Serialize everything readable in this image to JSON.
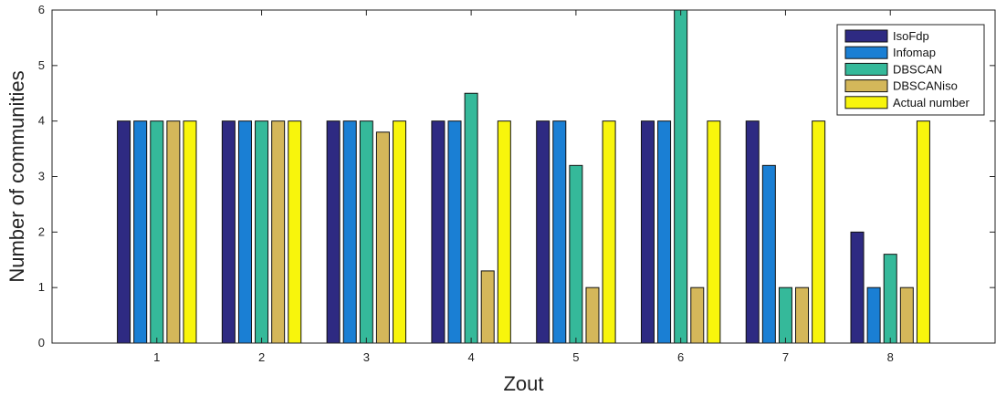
{
  "chart_data": {
    "type": "bar",
    "xlabel": "Zout",
    "ylabel": "Number of communities",
    "ylim": [
      0,
      6
    ],
    "yticks": [
      0,
      1,
      2,
      3,
      4,
      5,
      6
    ],
    "categories": [
      "1",
      "2",
      "3",
      "4",
      "5",
      "6",
      "7",
      "8"
    ],
    "grid": false,
    "legend_position": "top-right",
    "series": [
      {
        "name": "IsoFdp",
        "color": "#2e2a82",
        "values": [
          4,
          4,
          4,
          4,
          4,
          4,
          4,
          2
        ]
      },
      {
        "name": "Infomap",
        "color": "#1a7fd4",
        "values": [
          4,
          4,
          4,
          4,
          4,
          4,
          3.2,
          1
        ]
      },
      {
        "name": "DBSCAN",
        "color": "#35b99a",
        "values": [
          4,
          4,
          4,
          4.5,
          3.2,
          6,
          1,
          1.6
        ]
      },
      {
        "name": "DBSCANiso",
        "color": "#d4b75a",
        "values": [
          4,
          4,
          3.8,
          1.3,
          1,
          1,
          1,
          1
        ]
      },
      {
        "name": "Actual number",
        "color": "#f8f50c",
        "values": [
          4,
          4,
          4,
          4,
          4,
          4,
          4,
          4
        ]
      }
    ]
  }
}
